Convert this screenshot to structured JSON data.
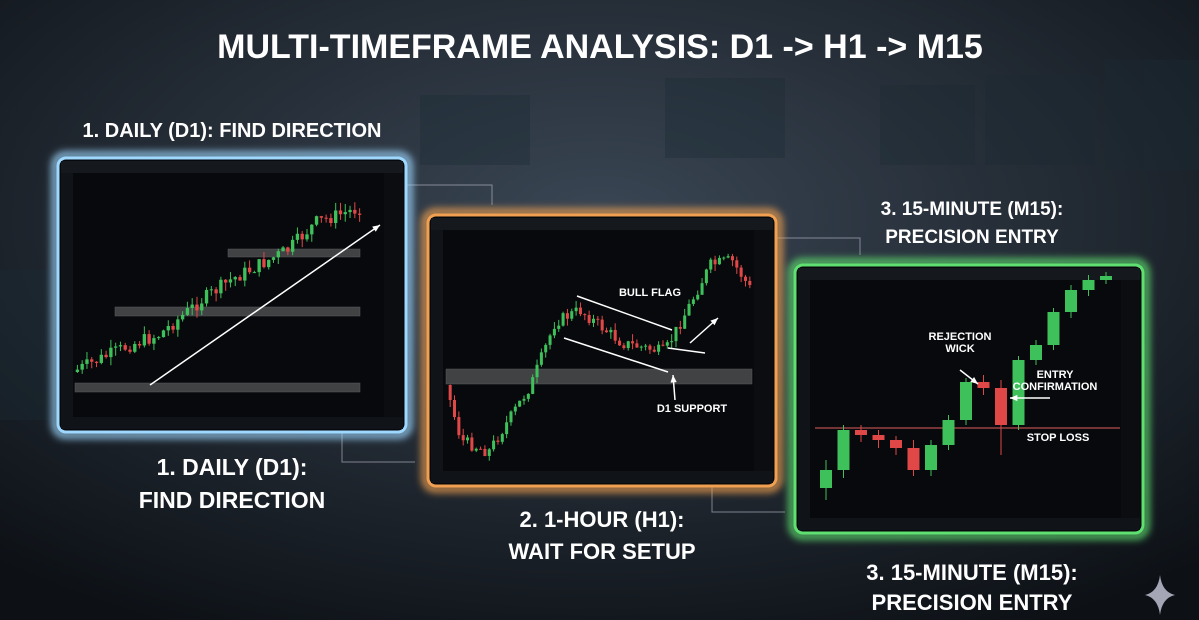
{
  "header": {
    "title": "MULTI-TIMEFRAME ANALYSIS: D1 -> H1 -> M15"
  },
  "panels": [
    {
      "top_label": "1. DAILY (D1): FIND DIRECTION",
      "bottom_label": [
        "1. DAILY (D1):",
        "FIND DIRECTION"
      ]
    },
    {
      "bottom_label": [
        "2. 1-HOUR (H1):",
        "WAIT FOR SETUP"
      ],
      "annotations": [
        "BULL FLAG",
        "D1 SUPPORT"
      ]
    },
    {
      "top_label": [
        "3. 15-MINUTE (M15):",
        "PRECISION ENTRY"
      ],
      "bottom_label": [
        "3. 15-MINUTE (M15):",
        "PRECISION ENTRY"
      ],
      "annotations": [
        [
          "REJECTION",
          "WICK"
        ],
        [
          "ENTRY",
          "CONFIRMATION"
        ],
        "STOP LOSS"
      ]
    }
  ]
}
